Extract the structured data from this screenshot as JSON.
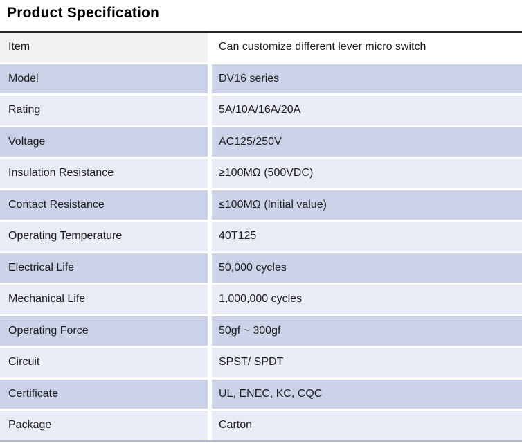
{
  "page": {
    "title": "Product Specification"
  },
  "colors": {
    "row_dark": "#ccd3e8",
    "row_light": "#e9ebf6",
    "header_left": "#f2f2f2",
    "header_right": "#ffffff",
    "top_rule": "#262626",
    "bottom_rule": "#b2b5c3",
    "text": "#1c1c1c"
  },
  "table": {
    "rows": [
      {
        "label": "Item",
        "value": "Can customize different lever micro switch"
      },
      {
        "label": "Model",
        "value": "DV16 series"
      },
      {
        "label": "Rating",
        "value": "5A/10A/16A/20A"
      },
      {
        "label": "Voltage",
        "value": "AC125/250V"
      },
      {
        "label": "Insulation Resistance",
        "value": "≥100MΩ (500VDC)"
      },
      {
        "label": "Contact Resistance",
        "value": "≤100MΩ (Initial value)"
      },
      {
        "label": "Operating Temperature",
        "value": "40T125"
      },
      {
        "label": "Electrical Life",
        "value": "50,000 cycles"
      },
      {
        "label": "Mechanical Life",
        "value": "1,000,000 cycles"
      },
      {
        "label": "Operating Force",
        "value": "50gf ~ 300gf"
      },
      {
        "label": "Circuit",
        "value": "SPST/ SPDT"
      },
      {
        "label": "Certificate",
        "value": "UL, ENEC, KC, CQC"
      },
      {
        "label": "Package",
        "value": "Carton"
      }
    ]
  }
}
